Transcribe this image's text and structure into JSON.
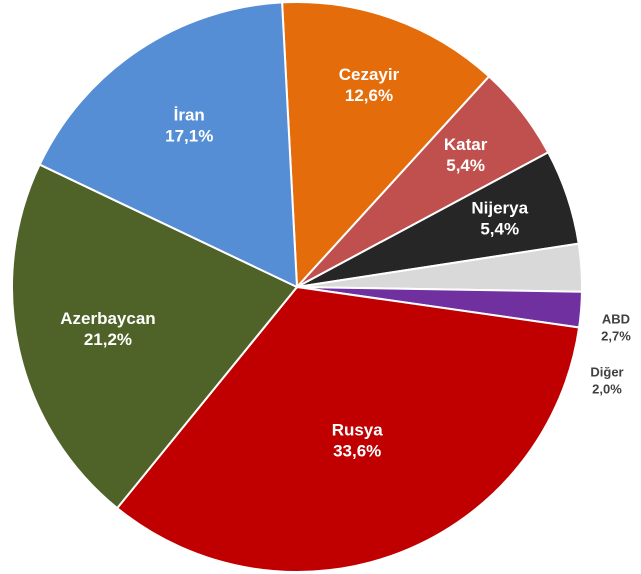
{
  "chart_data": {
    "type": "pie",
    "title": "",
    "start_angle_deg": -3,
    "slices": [
      {
        "label": "Cezayir",
        "value": 12.6,
        "value_label": "12,6%",
        "color": "#E46C0A",
        "text_color": "#ffffff"
      },
      {
        "label": "Katar",
        "value": 5.4,
        "value_label": "5,4%",
        "color": "#C0504D",
        "text_color": "#ffffff"
      },
      {
        "label": "Nijerya",
        "value": 5.4,
        "value_label": "5,4%",
        "color": "#262626",
        "text_color": "#ffffff"
      },
      {
        "label": "ABD",
        "value": 2.7,
        "value_label": "2,7%",
        "color": "#D9D9D9",
        "text_color": "#404040"
      },
      {
        "label": "Diğer",
        "value": 2.0,
        "value_label": "2,0%",
        "color": "#7030A0",
        "text_color": "#404040"
      },
      {
        "label": "Rusya",
        "value": 33.6,
        "value_label": "33,6%",
        "color": "#C00000",
        "text_color": "#ffffff"
      },
      {
        "label": "Azerbaycan",
        "value": 21.2,
        "value_label": "21,2%",
        "color": "#4F6228",
        "text_color": "#ffffff"
      },
      {
        "label": "İran",
        "value": 17.1,
        "value_label": "17,1%",
        "color": "#558ED5",
        "text_color": "#ffffff"
      }
    ]
  }
}
